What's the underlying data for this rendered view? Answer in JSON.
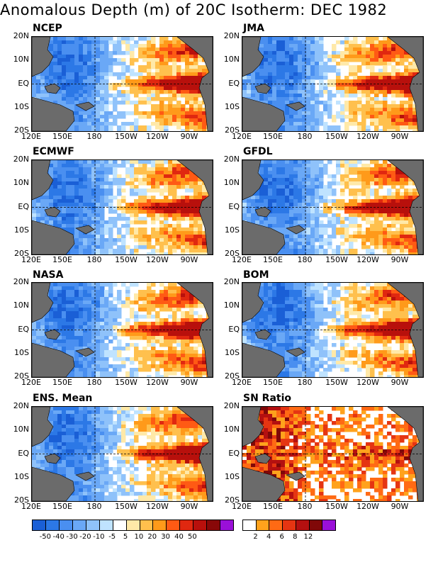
{
  "title": "Anomalous Depth (m) of 20C Isotherm: DEC 1982",
  "lat_labels": [
    "20N",
    "10N",
    "EQ",
    "10S",
    "20S"
  ],
  "lon_labels": [
    "120E",
    "150E",
    "180",
    "150W",
    "120W",
    "90W"
  ],
  "panels": [
    {
      "label": "NCEP",
      "kind": "model"
    },
    {
      "label": "JMA",
      "kind": "model"
    },
    {
      "label": "ECMWF",
      "kind": "model"
    },
    {
      "label": "GFDL",
      "kind": "model"
    },
    {
      "label": "NASA",
      "kind": "model"
    },
    {
      "label": "BOM",
      "kind": "model"
    },
    {
      "label": "ENS. Mean",
      "kind": "model"
    },
    {
      "label": "SN Ratio",
      "kind": "snratio"
    }
  ],
  "depth_colorbar": {
    "tick_labels": [
      "-50",
      "-40",
      "-30",
      "-20",
      "-10",
      "-5",
      "5",
      "10",
      "20",
      "30",
      "40",
      "50"
    ],
    "colors": [
      "#1a5fd6",
      "#2c78e6",
      "#4a8ff0",
      "#6aa8f6",
      "#8fc2fa",
      "#bfe3ff",
      "#ffffff",
      "#ffe9a8",
      "#ffc04d",
      "#ff9a1a",
      "#ff5a14",
      "#e02810",
      "#b8100c",
      "#880808",
      "#9a10d8"
    ]
  },
  "sn_colorbar": {
    "tick_labels": [
      "2",
      "4",
      "6",
      "8",
      "12"
    ],
    "colors": [
      "#ffffff",
      "#ffa21c",
      "#ff6a14",
      "#e53512",
      "#b41010",
      "#800808",
      "#9a10d8"
    ]
  }
}
